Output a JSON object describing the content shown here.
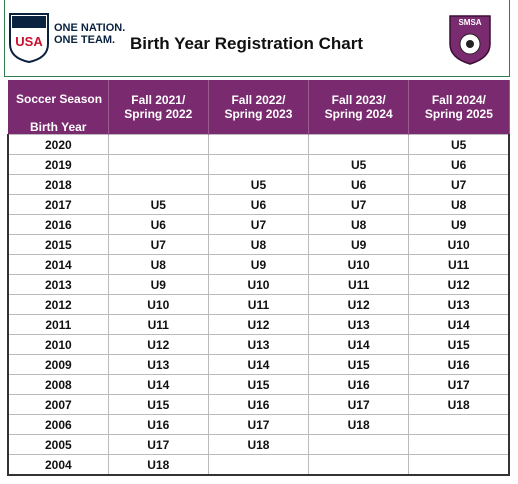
{
  "header": {
    "logo_left": {
      "mark": "USA",
      "line1": "ONE NATION.",
      "line2": "ONE TEAM."
    },
    "title": "Birth Year Registration Chart",
    "logo_right": "SMSA"
  },
  "table": {
    "corner_top": "Soccer Season",
    "corner_bottom": "Birth Year",
    "columns": [
      [
        "Fall 2021/",
        "Spring 2022"
      ],
      [
        "Fall 2022/",
        "Spring 2023"
      ],
      [
        "Fall 2023/",
        "Spring 2024"
      ],
      [
        "Fall 2024/",
        "Spring 2025"
      ]
    ],
    "rows": [
      [
        "2020",
        null,
        null,
        null,
        "U5"
      ],
      [
        "2019",
        null,
        null,
        "U5",
        "U6"
      ],
      [
        "2018",
        null,
        "U5",
        "U6",
        "U7"
      ],
      [
        "2017",
        "U5",
        "U6",
        "U7",
        "U8"
      ],
      [
        "2016",
        "U6",
        "U7",
        "U8",
        "U9"
      ],
      [
        "2015",
        "U7",
        "U8",
        "U9",
        "U10"
      ],
      [
        "2014",
        "U8",
        "U9",
        "U10",
        "U11"
      ],
      [
        "2013",
        "U9",
        "U10",
        "U11",
        "U12"
      ],
      [
        "2012",
        "U10",
        "U11",
        "U12",
        "U13"
      ],
      [
        "2011",
        "U11",
        "U12",
        "U13",
        "U14"
      ],
      [
        "2010",
        "U12",
        "U13",
        "U14",
        "U15"
      ],
      [
        "2009",
        "U13",
        "U14",
        "U15",
        "U16"
      ],
      [
        "2008",
        "U14",
        "U15",
        "U16",
        "U17"
      ],
      [
        "2007",
        "U15",
        "U16",
        "U17",
        "U18"
      ],
      [
        "2006",
        "U16",
        "U17",
        "U18",
        null
      ],
      [
        "2005",
        "U17",
        "U18",
        null,
        null
      ],
      [
        "2004",
        "U18",
        null,
        null,
        null
      ]
    ]
  }
}
